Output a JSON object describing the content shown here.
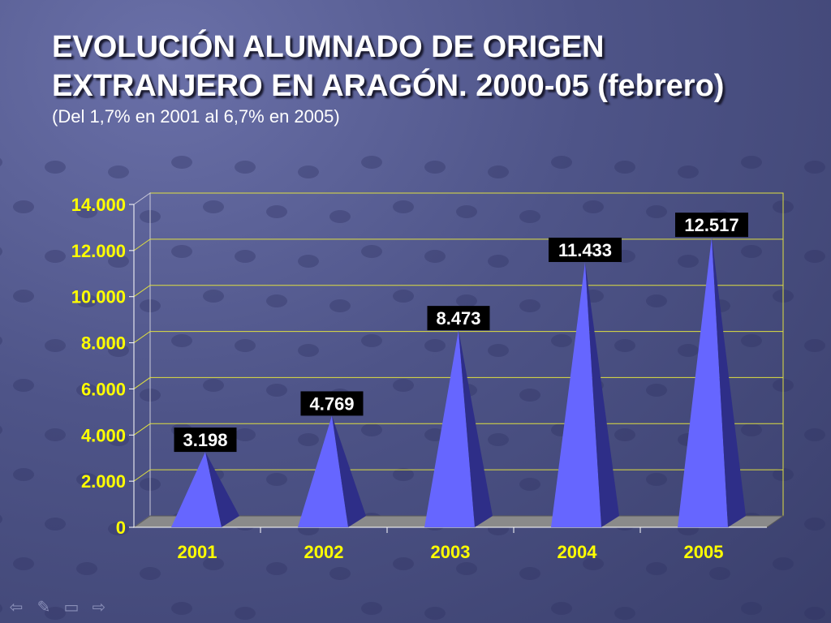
{
  "slide": {
    "title_line1": "EVOLUCIÓN ALUMNADO DE ORIGEN",
    "title_line2": "EXTRANJERO EN ARAGÓN. 2000-05 (febrero)",
    "subtitle": "(Del 1,7% en 2001 al 6,7% en 2005)"
  },
  "nav": {
    "prev_icon": "arrow-left-icon",
    "pen_icon": "pen-icon",
    "menu_icon": "menu-icon",
    "next_icon": "arrow-right-icon"
  },
  "colors": {
    "axis_labels": "#ffff00",
    "gridlines": "#e0e040",
    "cone_front": "#6666ff",
    "cone_side": "#2e2e88",
    "floor": "#8a8a8a",
    "data_label_bg": "#000000",
    "data_label_text": "#ffffff"
  },
  "chart_data": {
    "type": "bar",
    "bar_shape": "cone-3d",
    "categories": [
      "2001",
      "2002",
      "2003",
      "2004",
      "2005"
    ],
    "values": [
      3198,
      4769,
      8473,
      11433,
      12517
    ],
    "data_labels": [
      "3.198",
      "4.769",
      "8.473",
      "11.433",
      "12.517"
    ],
    "y_ticks": [
      0,
      2000,
      4000,
      6000,
      8000,
      10000,
      12000,
      14000
    ],
    "y_tick_labels": [
      "0",
      "2.000",
      "4.000",
      "6.000",
      "8.000",
      "10.000",
      "12.000",
      "14.000"
    ],
    "ylim": [
      0,
      14000
    ],
    "grid": true,
    "legend": "none",
    "title": "",
    "xlabel": "",
    "ylabel": ""
  }
}
